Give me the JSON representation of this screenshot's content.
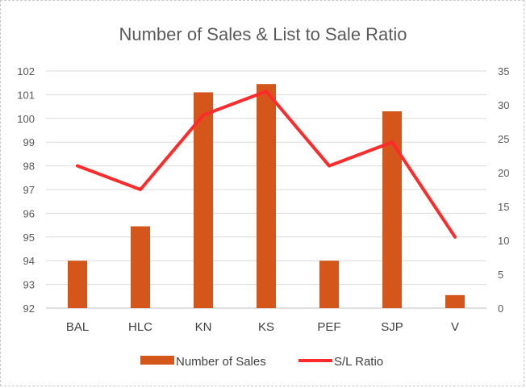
{
  "chart_data": {
    "type": "bar+line",
    "title": "Number of Sales & List to Sale Ratio",
    "categories": [
      "BAL",
      "HLC",
      "KN",
      "KS",
      "PEF",
      "SJP",
      "V"
    ],
    "series": [
      {
        "name": "Number of Sales",
        "type": "bar",
        "axis": "left",
        "color": "#D4561A",
        "values": [
          94.0,
          95.45,
          101.1,
          101.45,
          94.0,
          100.3,
          92.55
        ]
      },
      {
        "name": "S/L Ratio",
        "type": "line",
        "axis": "right",
        "color": "#FF2A2A",
        "values": [
          21,
          17.5,
          28.5,
          32,
          21,
          24.5,
          10.5
        ]
      }
    ],
    "y_left": {
      "min": 92,
      "max": 102,
      "ticks": [
        92,
        93,
        94,
        95,
        96,
        97,
        98,
        99,
        100,
        101,
        102
      ]
    },
    "y_right": {
      "min": 0,
      "max": 35,
      "ticks": [
        0,
        5,
        10,
        15,
        20,
        25,
        30,
        35
      ]
    },
    "grid": true,
    "legend": "bottom"
  }
}
